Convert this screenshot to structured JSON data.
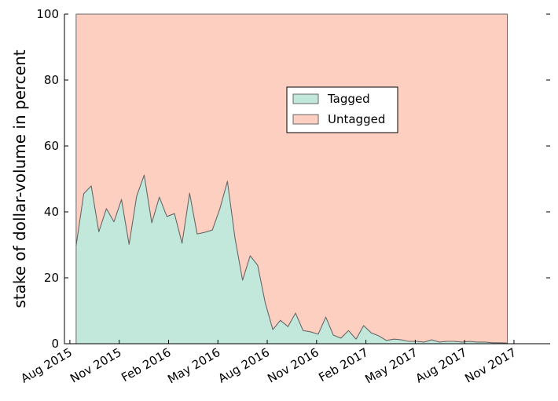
{
  "chart_data": {
    "type": "stacked_area",
    "ylabel": "stake of dollar-volume in percent",
    "x": [
      0.38,
      0.84,
      1.3,
      1.76,
      2.22,
      2.68,
      3.14,
      3.6,
      4.06,
      4.52,
      4.98,
      5.44,
      5.9,
      6.36,
      6.82,
      7.28,
      7.74,
      8.2,
      8.66,
      9.12,
      9.58,
      10.04,
      10.5,
      10.96,
      11.42,
      11.88,
      12.34,
      12.8,
      13.26,
      13.72,
      14.18,
      14.64,
      15.1,
      15.56,
      16.02,
      16.48,
      16.94,
      17.4,
      17.86,
      18.32,
      18.78,
      19.24,
      19.7,
      20.16,
      20.62,
      21.08,
      21.54,
      22,
      22.46,
      22.92,
      23.38,
      23.84,
      24.3,
      24.76,
      25.22,
      25.68,
      26.14,
      26.6
    ],
    "series": [
      {
        "name": "Tagged",
        "color": "#c2e8dc",
        "values": [
          29.8,
          45.5,
          47.9,
          34,
          41,
          37,
          43.8,
          30.2,
          44.8,
          51.2,
          36.7,
          44.5,
          38.6,
          39.5,
          30.5,
          45.7,
          33.3,
          33.8,
          34.5,
          41,
          49.3,
          32.1,
          19.3,
          26.7,
          23.8,
          12.4,
          4.3,
          7.1,
          5.2,
          9.3,
          4,
          3.6,
          2.9,
          8.1,
          2.6,
          1.7,
          4,
          1.4,
          5.5,
          3.3,
          2.4,
          1,
          1.4,
          1.2,
          0.7,
          0.7,
          0.5,
          1.2,
          0.5,
          0.7,
          0.7,
          0.5,
          0.7,
          0.5,
          0.5,
          0.3,
          0.3,
          0.2
        ]
      },
      {
        "name": "Untagged",
        "color": "#fdcfc0",
        "values": [
          70.2,
          54.5,
          52.1,
          66,
          59,
          63,
          56.2,
          69.8,
          55.2,
          48.8,
          63.3,
          55.5,
          61.4,
          60.5,
          69.5,
          54.3,
          66.7,
          66.2,
          65.5,
          59,
          50.7,
          67.9,
          80.7,
          73.3,
          76.2,
          87.6,
          95.7,
          92.9,
          94.8,
          90.7,
          96,
          96.4,
          97.1,
          91.9,
          97.4,
          98.3,
          96,
          98.6,
          94.5,
          96.7,
          97.6,
          99,
          98.6,
          98.8,
          99.3,
          99.3,
          99.5,
          98.8,
          99.5,
          99.3,
          99.3,
          99.5,
          99.3,
          99.5,
          99.5,
          99.7,
          99.7,
          99.8
        ]
      }
    ],
    "xlim": [
      -0.33,
      29.2
    ],
    "xticks": [
      {
        "value": 0,
        "label": "Aug 2015"
      },
      {
        "value": 3,
        "label": "Nov 2015"
      },
      {
        "value": 6,
        "label": "Feb 2016"
      },
      {
        "value": 9,
        "label": "May 2016"
      },
      {
        "value": 12,
        "label": "Aug 2016"
      },
      {
        "value": 15,
        "label": "Nov 2016"
      },
      {
        "value": 18,
        "label": "Feb 2017"
      },
      {
        "value": 21,
        "label": "May 2017"
      },
      {
        "value": 24,
        "label": "Aug 2017"
      },
      {
        "value": 27,
        "label": "Nov 2017"
      }
    ],
    "ylim": [
      0,
      100
    ],
    "yticks": [
      0,
      20,
      40,
      60,
      80,
      100
    ],
    "legend": "upper center"
  }
}
